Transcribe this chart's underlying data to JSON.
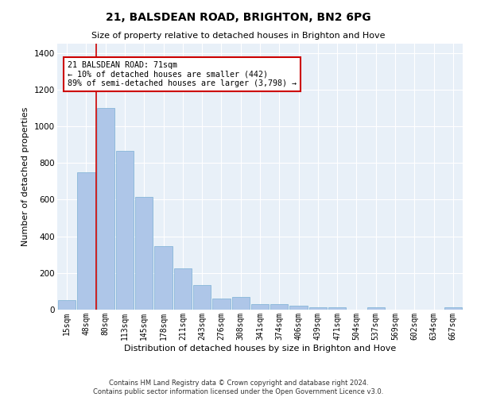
{
  "title": "21, BALSDEAN ROAD, BRIGHTON, BN2 6PG",
  "subtitle": "Size of property relative to detached houses in Brighton and Hove",
  "xlabel": "Distribution of detached houses by size in Brighton and Hove",
  "ylabel": "Number of detached properties",
  "footer1": "Contains HM Land Registry data © Crown copyright and database right 2024.",
  "footer2": "Contains public sector information licensed under the Open Government Licence v3.0.",
  "categories": [
    "15sqm",
    "48sqm",
    "80sqm",
    "113sqm",
    "145sqm",
    "178sqm",
    "211sqm",
    "243sqm",
    "276sqm",
    "308sqm",
    "341sqm",
    "374sqm",
    "406sqm",
    "439sqm",
    "471sqm",
    "504sqm",
    "537sqm",
    "569sqm",
    "602sqm",
    "634sqm",
    "667sqm"
  ],
  "values": [
    50,
    750,
    1100,
    865,
    615,
    345,
    225,
    135,
    60,
    68,
    30,
    30,
    22,
    15,
    15,
    0,
    12,
    0,
    0,
    0,
    12
  ],
  "bar_color": "#aec6e8",
  "bar_edge_color": "#7aafd4",
  "background_color": "#e8f0f8",
  "grid_color": "#ffffff",
  "annotation_text": "21 BALSDEAN ROAD: 71sqm\n← 10% of detached houses are smaller (442)\n89% of semi-detached houses are larger (3,798) →",
  "vline_color": "#cc0000",
  "annotation_box_color": "#cc0000",
  "ylim": [
    0,
    1450
  ],
  "yticks": [
    0,
    200,
    400,
    600,
    800,
    1000,
    1200,
    1400
  ]
}
